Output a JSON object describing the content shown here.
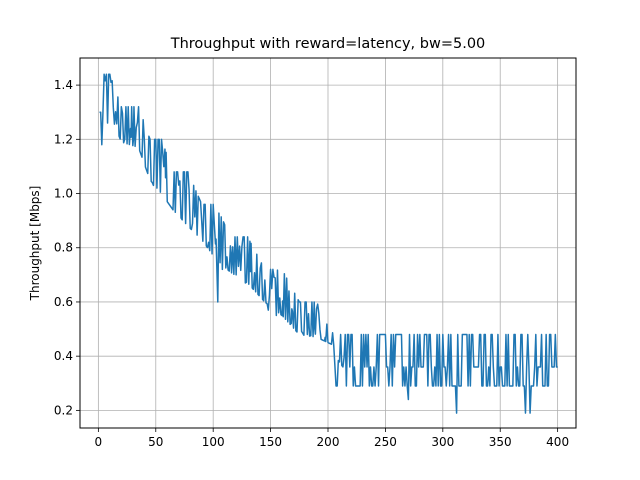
{
  "chart_data": {
    "type": "line",
    "title": "Throughput with reward=latency, bw=5.00",
    "xlabel": "",
    "ylabel": "Throughput [Mbps]",
    "xlim": [
      -16,
      416
    ],
    "ylim": [
      0.135,
      1.5
    ],
    "xticks": [
      0,
      50,
      100,
      150,
      200,
      250,
      300,
      350,
      400
    ],
    "yticks": [
      0.2,
      0.4,
      0.6,
      0.8,
      1.0,
      1.2,
      1.4
    ],
    "xtick_labels": [
      "0",
      "50",
      "100",
      "150",
      "200",
      "250",
      "300",
      "350",
      "400"
    ],
    "ytick_labels": [
      "0.2",
      "0.4",
      "0.6",
      "0.8",
      "1.0",
      "1.2",
      "1.4"
    ],
    "grid": true,
    "legend": false,
    "color": "#1f77b4",
    "series": [
      {
        "descent_phase": {
          "x_range": [
            1,
            205
          ],
          "envelope_points": [
            {
              "x": 1,
              "low": 1.3,
              "high": 1.44
            },
            {
              "x": 10,
              "low": 1.3,
              "high": 1.44
            },
            {
              "x": 20,
              "low": 1.19,
              "high": 1.32
            },
            {
              "x": 35,
              "low": 1.17,
              "high": 1.32
            },
            {
              "x": 45,
              "low": 1.05,
              "high": 1.2
            },
            {
              "x": 55,
              "low": 1.0,
              "high": 1.2
            },
            {
              "x": 65,
              "low": 0.94,
              "high": 1.08
            },
            {
              "x": 78,
              "low": 0.88,
              "high": 1.08
            },
            {
              "x": 90,
              "low": 0.83,
              "high": 0.96
            },
            {
              "x": 102,
              "low": 0.76,
              "high": 0.96
            },
            {
              "x": 115,
              "low": 0.71,
              "high": 0.84
            },
            {
              "x": 130,
              "low": 0.67,
              "high": 0.84
            },
            {
              "x": 145,
              "low": 0.6,
              "high": 0.72
            },
            {
              "x": 160,
              "low": 0.55,
              "high": 0.72
            },
            {
              "x": 175,
              "low": 0.48,
              "high": 0.6
            },
            {
              "x": 190,
              "low": 0.47,
              "high": 0.6
            },
            {
              "x": 205,
              "low": 0.44,
              "high": 0.48
            }
          ],
          "trend": [
            {
              "x": 1,
              "y": 1.34
            },
            {
              "x": 50,
              "y": 1.1
            },
            {
              "x": 100,
              "y": 0.84
            },
            {
              "x": 150,
              "y": 0.64
            },
            {
              "x": 205,
              "y": 0.44
            }
          ],
          "outliers": [
            {
              "x": 3,
              "y": 1.18
            },
            {
              "x": 8,
              "y": 1.26
            },
            {
              "x": 48,
              "y": 1.03
            },
            {
              "x": 72,
              "y": 0.91
            },
            {
              "x": 82,
              "y": 0.89
            },
            {
              "x": 96,
              "y": 0.82
            },
            {
              "x": 104,
              "y": 0.6
            },
            {
              "x": 108,
              "y": 0.72
            },
            {
              "x": 120,
              "y": 0.7
            },
            {
              "x": 128,
              "y": 0.67
            },
            {
              "x": 148,
              "y": 0.57
            },
            {
              "x": 155,
              "y": 0.55
            },
            {
              "x": 182,
              "y": 0.48
            }
          ]
        },
        "steady_phase": {
          "x_range": [
            207,
            400
          ],
          "levels": [
            0.48,
            0.36,
            0.29
          ],
          "outliers": [
            {
              "x": 270,
              "y": 0.24
            },
            {
              "x": 312,
              "y": 0.19
            },
            {
              "x": 372,
              "y": 0.19
            },
            {
              "x": 376,
              "y": 0.19
            },
            {
              "x": 400,
              "y": 0.36
            }
          ]
        }
      }
    ]
  }
}
